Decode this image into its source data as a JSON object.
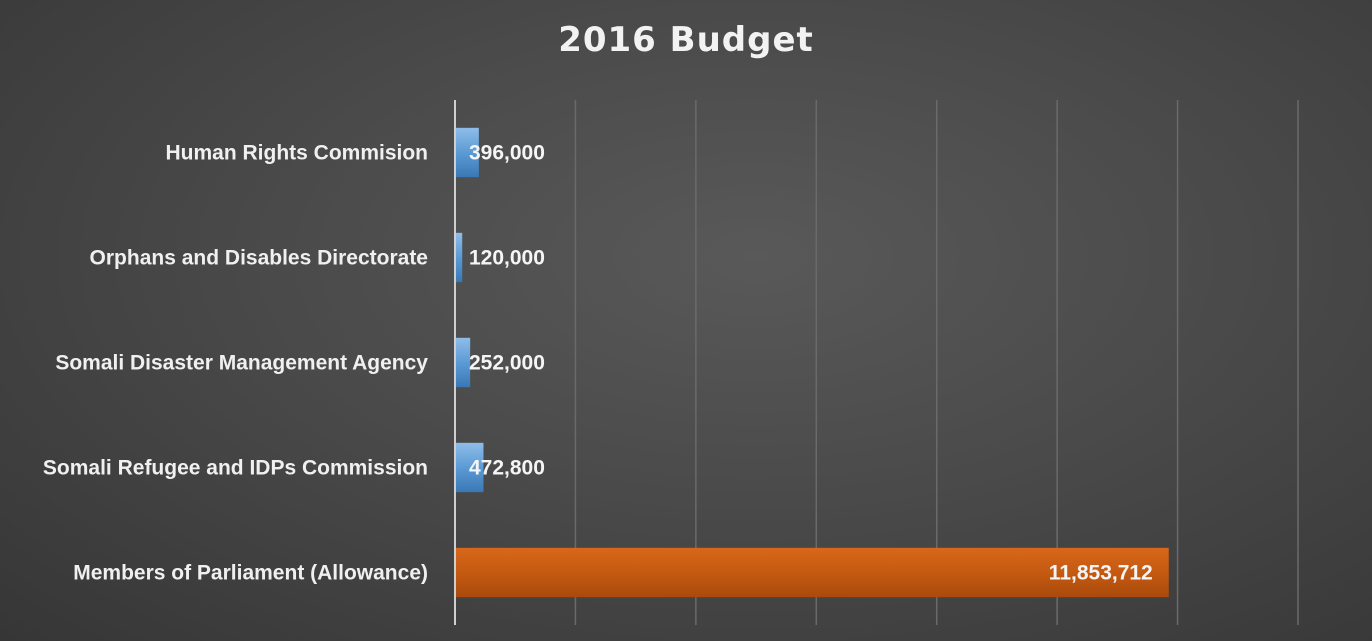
{
  "chart_data": {
    "type": "bar",
    "orientation": "horizontal",
    "title": "2016 Budget",
    "categories": [
      "Human Rights Commision",
      "Orphans and Disables Directorate",
      "Somali Disaster Management Agency",
      "Somali Refugee and IDPs Commission",
      "Members of Parliament (Allowance)"
    ],
    "values": [
      396000,
      120000,
      252000,
      472800,
      11853712
    ],
    "data_labels": [
      "396,000",
      "120,000",
      "252,000",
      "472,800",
      "11,853,712"
    ],
    "xlim": [
      0,
      14000000
    ],
    "grid": true,
    "legend": "none",
    "colors": {
      "default_bar": "#5b9bd5",
      "highlight_bar": "#c55a11",
      "gridline": "#6a6a6a",
      "axis": "#cfcfcf",
      "text": "#f0f0f0"
    }
  }
}
